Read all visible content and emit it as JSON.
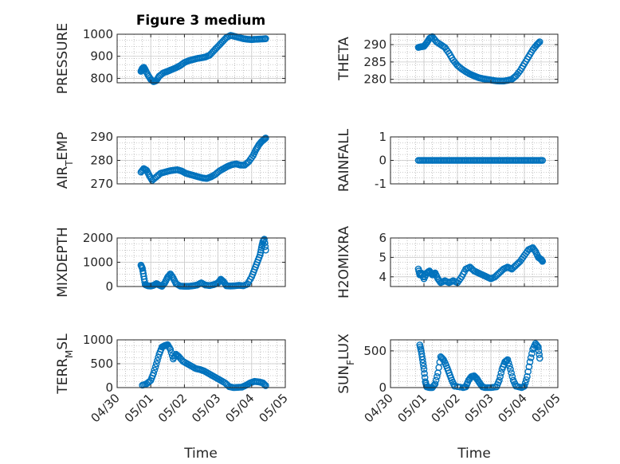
{
  "figure_title": "Figure 3 medium",
  "x_axis_label": "Time",
  "date_ticks": [
    "04/30",
    "05/01",
    "05/02",
    "05/03",
    "05/04",
    "05/05"
  ],
  "marker_color": "#0072BD",
  "chart_data": [
    {
      "type": "scatter",
      "panel": "top-left",
      "ylabel": "PRESSURE",
      "ylim": [
        780,
        1000
      ],
      "yticks": [
        800,
        900,
        1000
      ],
      "grid": true,
      "x": [
        "04/30 17:00",
        "04/30 18:00",
        "04/30 19:00",
        "04/30 20:00",
        "04/30 22:00",
        "05/01 00:00",
        "05/01 02:00",
        "05/01 04:00",
        "05/01 06:00",
        "05/01 09:00",
        "05/01 12:00",
        "05/01 15:00",
        "05/01 18:00",
        "05/01 21:00",
        "05/02 00:00",
        "05/02 03:00",
        "05/02 06:00",
        "05/02 09:00",
        "05/02 12:00",
        "05/02 15:00",
        "05/02 18:00",
        "05/02 21:00",
        "05/03 00:00",
        "05/03 03:00",
        "05/03 06:00",
        "05/03 09:00",
        "05/03 12:00",
        "05/03 15:00",
        "05/03 18:00",
        "05/03 21:00",
        "05/04 00:00",
        "05/04 03:00",
        "05/04 06:00",
        "05/04 09:00",
        "05/04 10:00"
      ],
      "y": [
        832,
        845,
        850,
        840,
        815,
        795,
        785,
        790,
        810,
        825,
        832,
        840,
        848,
        858,
        872,
        880,
        885,
        890,
        893,
        897,
        905,
        925,
        945,
        965,
        985,
        995,
        990,
        985,
        980,
        977,
        976,
        977,
        978,
        979,
        980
      ]
    },
    {
      "type": "scatter",
      "panel": "top-right",
      "ylabel": "THETA",
      "ylim": [
        279,
        293
      ],
      "yticks": [
        280,
        285,
        290
      ],
      "grid": true,
      "x": [
        "04/30 20:00",
        "04/30 22:00",
        "05/01 00:00",
        "05/01 02:00",
        "05/01 04:00",
        "05/01 06:00",
        "05/01 09:00",
        "05/01 12:00",
        "05/01 15:00",
        "05/01 18:00",
        "05/01 21:00",
        "05/02 00:00",
        "05/02 03:00",
        "05/02 06:00",
        "05/02 09:00",
        "05/02 12:00",
        "05/02 15:00",
        "05/02 18:00",
        "05/02 21:00",
        "05/03 00:00",
        "05/03 03:00",
        "05/03 06:00",
        "05/03 09:00",
        "05/03 12:00",
        "05/03 15:00",
        "05/03 18:00",
        "05/03 21:00",
        "05/04 00:00",
        "05/04 03:00",
        "05/04 06:00",
        "05/04 09:00",
        "05/04 11:00"
      ],
      "y": [
        289.2,
        289.4,
        289.5,
        290.5,
        291.8,
        292.3,
        290.8,
        290.0,
        289.2,
        287.5,
        285.5,
        284.0,
        283.0,
        282.2,
        281.5,
        281.0,
        280.5,
        280.2,
        280.0,
        279.8,
        279.6,
        279.5,
        279.5,
        279.7,
        280.0,
        281.0,
        282.5,
        284.5,
        286.5,
        288.5,
        290.0,
        290.8
      ]
    },
    {
      "type": "scatter",
      "panel": "second-left",
      "ylabel": "AIR_TEMP",
      "ylim": [
        270,
        290
      ],
      "yticks": [
        270,
        280,
        290
      ],
      "grid": true,
      "x": [
        "04/30 17:00",
        "04/30 19:00",
        "04/30 21:00",
        "04/30 23:00",
        "05/01 01:00",
        "05/01 04:00",
        "05/01 07:00",
        "05/01 10:00",
        "05/01 13:00",
        "05/01 16:00",
        "05/01 19:00",
        "05/01 22:00",
        "05/02 01:00",
        "05/02 04:00",
        "05/02 07:00",
        "05/02 10:00",
        "05/02 13:00",
        "05/02 16:00",
        "05/02 19:00",
        "05/02 22:00",
        "05/03 01:00",
        "05/03 04:00",
        "05/03 07:00",
        "05/03 10:00",
        "05/03 13:00",
        "05/03 16:00",
        "05/03 19:00",
        "05/03 22:00",
        "05/04 01:00",
        "05/04 03:00",
        "05/04 05:00",
        "05/04 07:00",
        "05/04 09:00",
        "05/04 10:00"
      ],
      "y": [
        275.0,
        276.5,
        275.8,
        273.5,
        271.5,
        273.0,
        274.5,
        275.0,
        275.5,
        275.8,
        276.0,
        275.5,
        274.5,
        274.0,
        273.5,
        273.0,
        272.5,
        272.3,
        273.0,
        274.0,
        275.5,
        276.5,
        277.5,
        278.2,
        278.5,
        278.0,
        278.0,
        279.5,
        282.0,
        284.5,
        286.5,
        288.0,
        289.0,
        289.5
      ]
    },
    {
      "type": "scatter",
      "panel": "second-right",
      "ylabel": "RAINFALL",
      "ylim": [
        -1,
        1
      ],
      "yticks": [
        -1,
        0,
        1
      ],
      "grid": true,
      "x": [
        "04/30 20:00",
        "05/04 13:00"
      ],
      "y": [
        0,
        0
      ]
    },
    {
      "type": "scatter",
      "panel": "third-left",
      "ylabel": "MIXDEPTH",
      "ylim": [
        0,
        2000
      ],
      "yticks": [
        0,
        1000,
        2000
      ],
      "grid": true,
      "x": [
        "04/30 17:00",
        "04/30 18:00",
        "04/30 19:00",
        "04/30 20:00",
        "04/30 22:00",
        "05/01 00:00",
        "05/01 02:00",
        "05/01 04:00",
        "05/01 06:00",
        "05/01 08:00",
        "05/01 10:00",
        "05/01 12:00",
        "05/01 14:00",
        "05/01 16:00",
        "05/01 18:00",
        "05/01 21:00",
        "05/02 00:00",
        "05/02 03:00",
        "05/02 06:00",
        "05/02 09:00",
        "05/02 12:00",
        "05/02 15:00",
        "05/02 18:00",
        "05/02 21:00",
        "05/03 00:00",
        "05/03 02:00",
        "05/03 04:00",
        "05/03 06:00",
        "05/03 09:00",
        "05/03 12:00",
        "05/03 15:00",
        "05/03 18:00",
        "05/03 21:00",
        "05/04 00:00",
        "05/04 02:00",
        "05/04 04:00",
        "05/04 06:00",
        "05/04 07:00",
        "05/04 08:00",
        "05/04 09:00",
        "05/04 10:00"
      ],
      "y": [
        880,
        750,
        420,
        80,
        30,
        20,
        50,
        120,
        60,
        10,
        150,
        380,
        520,
        350,
        120,
        20,
        10,
        10,
        30,
        60,
        150,
        60,
        40,
        80,
        150,
        300,
        200,
        30,
        20,
        30,
        50,
        30,
        100,
        400,
        700,
        1000,
        1300,
        1600,
        1850,
        1950,
        1500
      ]
    },
    {
      "type": "scatter",
      "panel": "third-right",
      "ylabel": "H2OMIXRA",
      "ylim": [
        3.5,
        6
      ],
      "yticks": [
        4,
        5,
        6
      ],
      "grid": true,
      "x": [
        "04/30 20:00",
        "04/30 21:00",
        "04/30 22:00",
        "05/01 00:00",
        "05/01 02:00",
        "05/01 04:00",
        "05/01 06:00",
        "05/01 08:00",
        "05/01 10:00",
        "05/01 12:00",
        "05/01 15:00",
        "05/01 18:00",
        "05/01 21:00",
        "05/02 00:00",
        "05/02 03:00",
        "05/02 06:00",
        "05/02 09:00",
        "05/02 12:00",
        "05/02 15:00",
        "05/02 18:00",
        "05/02 21:00",
        "05/03 00:00",
        "05/03 03:00",
        "05/03 06:00",
        "05/03 09:00",
        "05/03 12:00",
        "05/03 15:00",
        "05/03 18:00",
        "05/03 21:00",
        "05/04 00:00",
        "05/04 03:00",
        "05/04 06:00",
        "05/04 08:00",
        "05/04 10:00",
        "05/04 12:00",
        "05/04 13:00"
      ],
      "y": [
        4.4,
        4.1,
        4.2,
        3.9,
        4.2,
        4.3,
        4.1,
        4.2,
        3.9,
        3.7,
        3.8,
        3.7,
        3.8,
        3.7,
        4.0,
        4.4,
        4.5,
        4.3,
        4.2,
        4.1,
        4.0,
        3.9,
        4.0,
        4.2,
        4.4,
        4.5,
        4.4,
        4.6,
        4.8,
        5.1,
        5.4,
        5.5,
        5.3,
        5.0,
        4.9,
        4.8
      ]
    },
    {
      "type": "scatter",
      "panel": "bottom-left",
      "ylabel": "TERR_MSL",
      "ylim": [
        0,
        1000
      ],
      "yticks": [
        0,
        500,
        1000
      ],
      "grid": true,
      "x": [
        "04/30 18:00",
        "04/30 21:00",
        "05/01 00:00",
        "05/01 02:00",
        "05/01 04:00",
        "05/01 06:00",
        "05/01 08:00",
        "05/01 10:00",
        "05/01 12:00",
        "05/01 14:00",
        "05/01 16:00",
        "05/01 18:00",
        "05/01 20:00",
        "05/01 23:00",
        "05/02 02:00",
        "05/02 05:00",
        "05/02 08:00",
        "05/02 11:00",
        "05/02 14:00",
        "05/02 17:00",
        "05/02 20:00",
        "05/02 23:00",
        "05/03 02:00",
        "05/03 05:00",
        "05/03 08:00",
        "05/03 11:00",
        "05/03 14:00",
        "05/03 17:00",
        "05/03 20:00",
        "05/03 23:00",
        "05/04 02:00",
        "05/04 05:00",
        "05/04 08:00",
        "05/04 10:00"
      ],
      "y": [
        50,
        80,
        150,
        300,
        500,
        700,
        850,
        880,
        900,
        800,
        600,
        700,
        650,
        550,
        500,
        450,
        400,
        380,
        350,
        300,
        250,
        200,
        150,
        100,
        20,
        0,
        5,
        10,
        50,
        100,
        130,
        120,
        100,
        40
      ]
    },
    {
      "type": "scatter",
      "panel": "bottom-right",
      "ylabel": "SUN_FLUX",
      "ylim": [
        0,
        650
      ],
      "yticks": [
        0,
        500
      ],
      "grid": true,
      "x": [
        "04/30 21:00",
        "04/30 22:00",
        "04/30 23:00",
        "05/01 00:00",
        "05/01 01:00",
        "05/01 02:00",
        "05/01 04:00",
        "05/01 06:00",
        "05/01 08:00",
        "05/01 10:00",
        "05/01 12:00",
        "05/01 14:00",
        "05/01 16:00",
        "05/01 18:00",
        "05/01 20:00",
        "05/01 22:00",
        "05/02 04:00",
        "05/02 06:00",
        "05/02 08:00",
        "05/02 10:00",
        "05/02 12:00",
        "05/02 14:00",
        "05/02 16:00",
        "05/02 18:00",
        "05/02 20:00",
        "05/03 00:00",
        "05/03 04:00",
        "05/03 06:00",
        "05/03 08:00",
        "05/03 10:00",
        "05/03 12:00",
        "05/03 14:00",
        "05/03 16:00",
        "05/03 18:00",
        "05/03 22:00",
        "05/04 00:00",
        "05/04 02:00",
        "05/04 04:00",
        "05/04 06:00",
        "05/04 08:00",
        "05/04 10:00",
        "05/04 11:00"
      ],
      "y": [
        580,
        500,
        380,
        250,
        80,
        10,
        0,
        0,
        50,
        200,
        420,
        380,
        300,
        200,
        100,
        20,
        0,
        10,
        100,
        150,
        160,
        120,
        60,
        10,
        0,
        0,
        10,
        100,
        250,
        350,
        380,
        250,
        100,
        20,
        0,
        20,
        150,
        350,
        520,
        600,
        550,
        400
      ]
    }
  ]
}
